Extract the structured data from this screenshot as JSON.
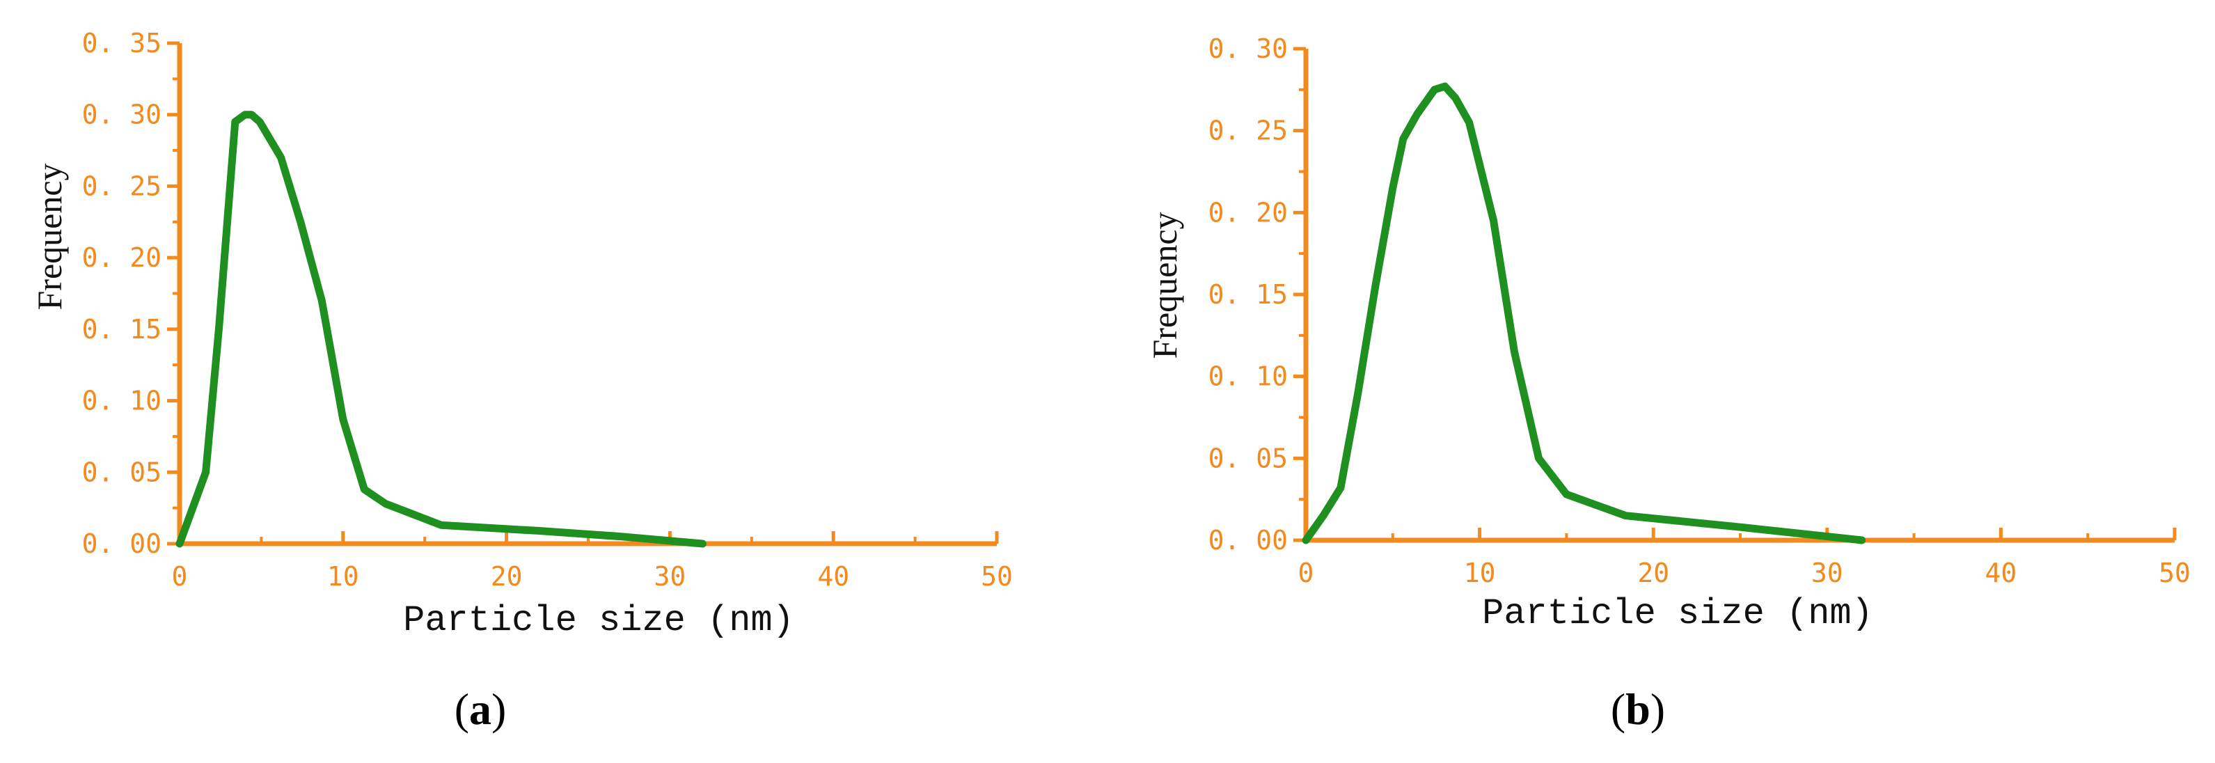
{
  "colors": {
    "axis": "#f28a1f",
    "tick_label": "#f28a1f",
    "line": "#1f8f1f",
    "text": "#111111"
  },
  "chart_data": [
    {
      "type": "line",
      "panel_label": "a",
      "title": "",
      "xlabel": "Particle size (nm)",
      "ylabel": "Frequency",
      "xlim": [
        0,
        50
      ],
      "ylim": [
        0,
        0.35
      ],
      "xticks": [
        0,
        10,
        20,
        30,
        40,
        50
      ],
      "xtick_labels": [
        "0",
        "10",
        "20",
        "30",
        "40",
        "50"
      ],
      "yticks": [
        0,
        0.05,
        0.1,
        0.15,
        0.2,
        0.25,
        0.3,
        0.35
      ],
      "ytick_labels": [
        "0. 00",
        "0. 05",
        "0. 10",
        "0. 15",
        "0. 20",
        "0. 25",
        "0. 30",
        "0. 35"
      ],
      "grid": false,
      "legend": "none",
      "series": [
        {
          "x": [
            0,
            1.6,
            2.4,
            3.4,
            4.0,
            4.4,
            4.9,
            6.2,
            7.4,
            8.7,
            10.0,
            11.3,
            12.6,
            16.0,
            22.0,
            27.0,
            32.0
          ],
          "y": [
            0,
            0.05,
            0.15,
            0.295,
            0.3,
            0.3,
            0.295,
            0.27,
            0.225,
            0.17,
            0.087,
            0.038,
            0.028,
            0.013,
            0.009,
            0.005,
            0.0
          ]
        }
      ]
    },
    {
      "type": "line",
      "panel_label": "b",
      "title": "",
      "xlabel": "Particle size (nm)",
      "ylabel": "Frequency",
      "xlim": [
        0,
        50
      ],
      "ylim": [
        0,
        0.3
      ],
      "xticks": [
        0,
        10,
        20,
        30,
        40,
        50
      ],
      "xtick_labels": [
        "0",
        "10",
        "20",
        "30",
        "40",
        "50"
      ],
      "yticks": [
        0,
        0.05,
        0.1,
        0.15,
        0.2,
        0.25,
        0.3
      ],
      "ytick_labels": [
        "0. 00",
        "0. 05",
        "0. 10",
        "0. 15",
        "0. 20",
        "0. 25",
        "0. 30"
      ],
      "grid": false,
      "legend": "none",
      "series": [
        {
          "x": [
            0,
            1.0,
            2.0,
            3.0,
            4.0,
            5.0,
            5.6,
            6.4,
            7.4,
            8.0,
            8.6,
            9.4,
            10.8,
            12.0,
            13.4,
            15.0,
            18.4,
            25.0,
            32.0
          ],
          "y": [
            0,
            0.015,
            0.032,
            0.09,
            0.155,
            0.215,
            0.245,
            0.26,
            0.275,
            0.277,
            0.27,
            0.255,
            0.195,
            0.115,
            0.05,
            0.028,
            0.015,
            0.008,
            0.0
          ]
        }
      ]
    }
  ]
}
